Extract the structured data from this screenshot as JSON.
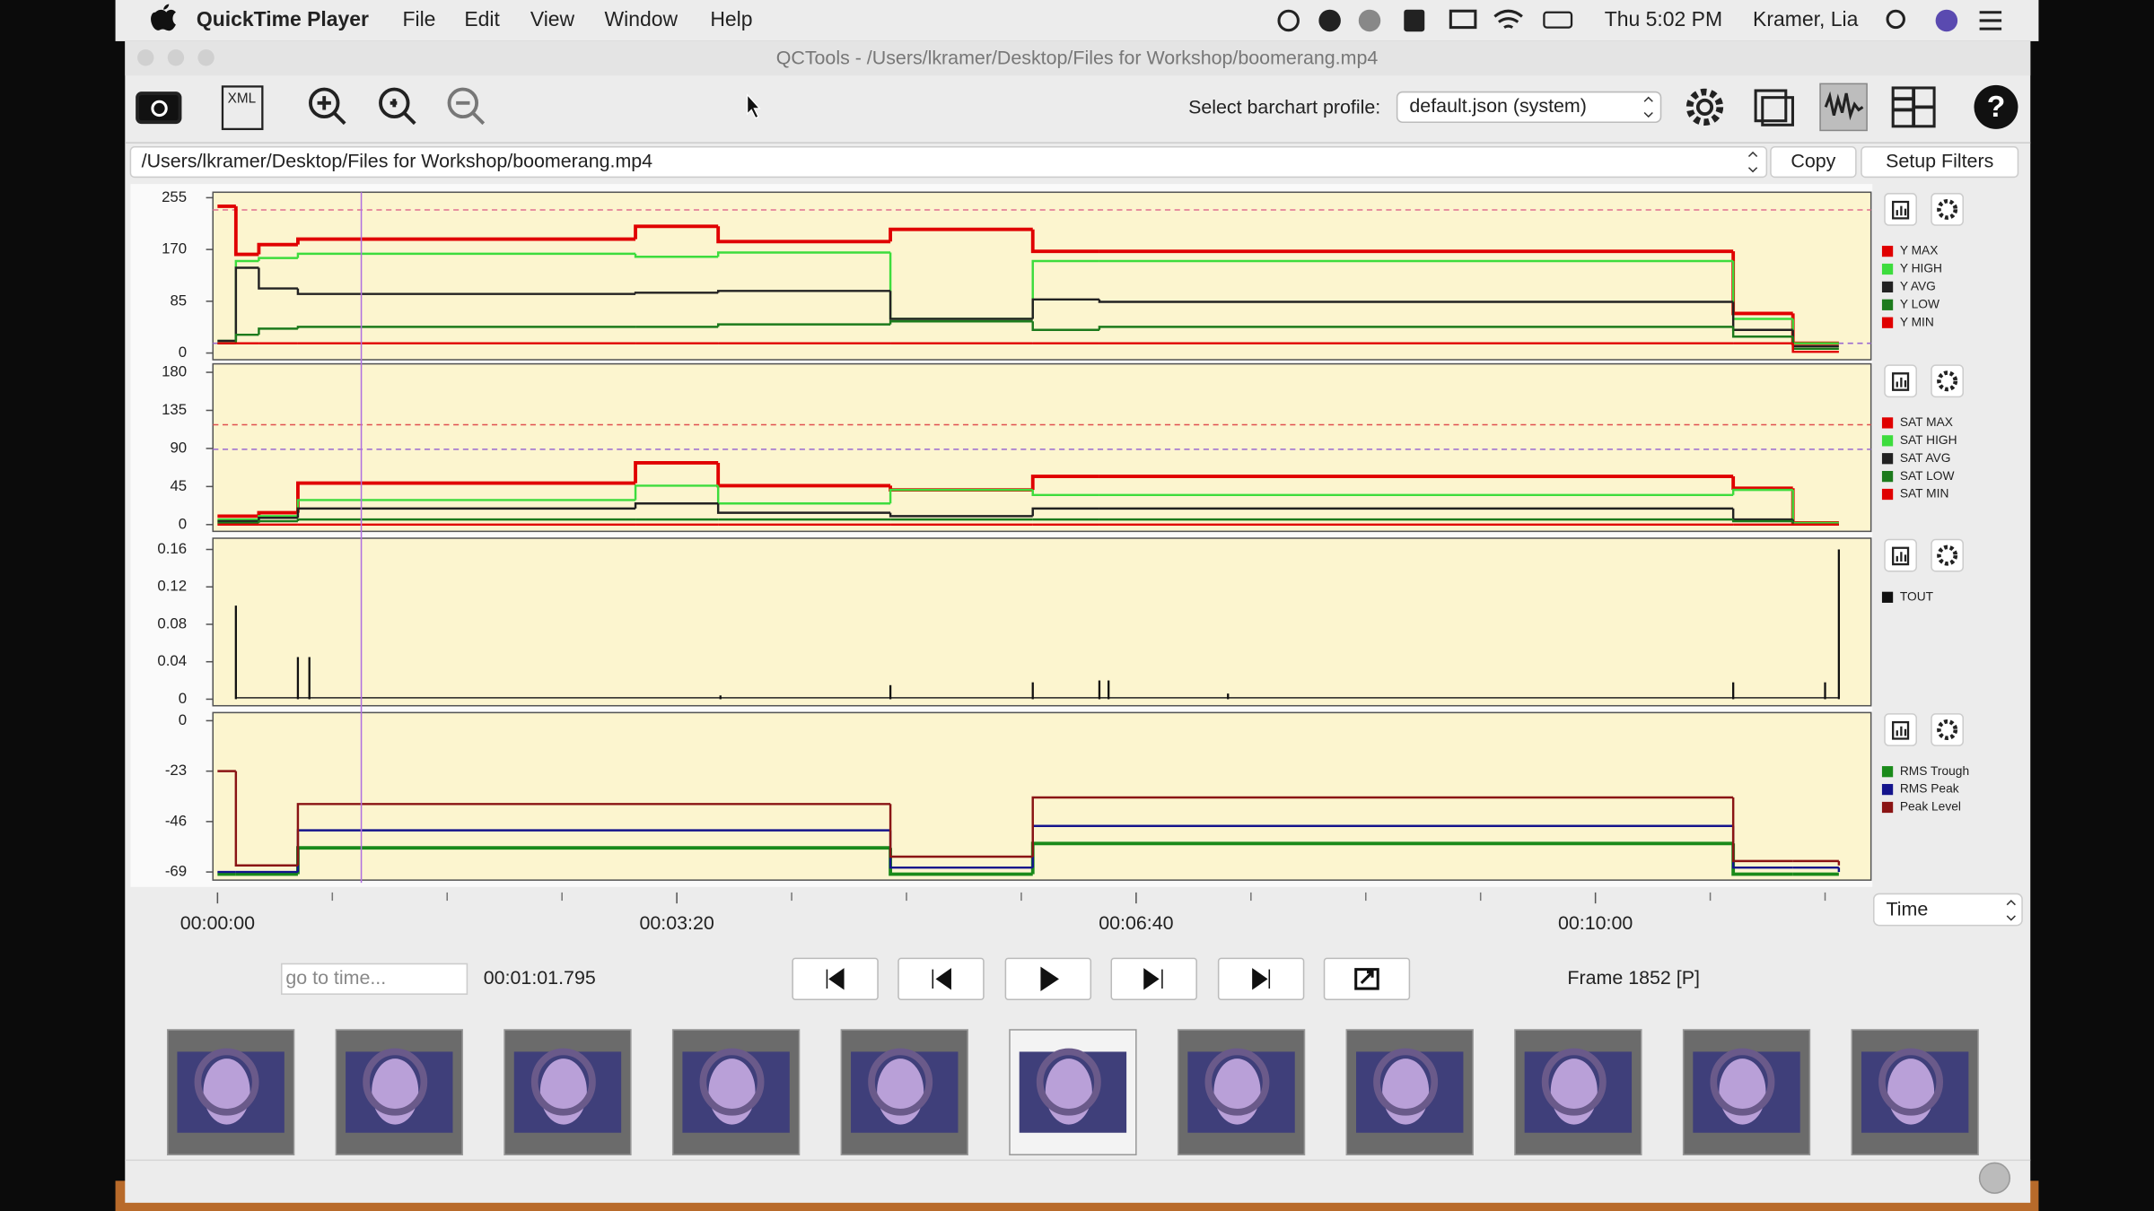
{
  "menubar": {
    "app": "QuickTime Player",
    "items": [
      "File",
      "Edit",
      "View",
      "Window",
      "Help"
    ],
    "clock": "Thu 5:02 PM",
    "user": "Kramer, Lia"
  },
  "window": {
    "title": "QCTools - /Users/lkramer/Desktop/Files for Workshop/boomerang.mp4"
  },
  "toolbar": {
    "xml_icon": "XML",
    "profile_label": "Select barchart profile:",
    "profile_value": "default.json (system)"
  },
  "file_bar": {
    "path": "/Users/lkramer/Desktop/Files for Workshop/boomerang.mp4",
    "buttons": [
      "Copy",
      "Setup Filters"
    ]
  },
  "graphs": [
    {
      "type": "step",
      "ylim": [
        -11,
        264
      ],
      "yticks": [
        0,
        85,
        170,
        255
      ],
      "x": [
        0,
        8,
        18,
        35,
        182,
        218,
        293,
        355,
        384,
        660,
        686,
        706
      ],
      "reference_lines": [
        {
          "value": 235,
          "color": "#e07090"
        },
        {
          "value": 16,
          "color": "#9a6ad0"
        }
      ],
      "series": [
        {
          "name": "Y MAX",
          "color": "#e00000",
          "values": [
            241,
            162,
            178,
            187,
            208,
            183,
            203,
            167,
            167,
            65,
            16,
            16
          ]
        },
        {
          "name": "Y HIGH",
          "color": "#3ddc3d",
          "values": [
            20,
            151,
            156,
            163,
            158,
            165,
            56,
            151,
            151,
            56,
            16,
            16
          ]
        },
        {
          "name": "Y AVG",
          "color": "#222222",
          "values": [
            20,
            140,
            106,
            97,
            99,
            102,
            56,
            88,
            84,
            38,
            11,
            11
          ]
        },
        {
          "name": "Y LOW",
          "color": "#1c7a1c",
          "values": [
            16,
            30,
            40,
            43,
            43,
            47,
            52,
            38,
            43,
            27,
            7,
            7
          ]
        },
        {
          "name": "Y MIN",
          "color": "#e00000",
          "values": [
            16,
            16,
            16,
            16,
            16,
            16,
            16,
            16,
            16,
            16,
            2,
            2
          ]
        }
      ]
    },
    {
      "type": "step",
      "ylim": [
        -8,
        190
      ],
      "yticks": [
        0,
        45,
        90,
        135,
        180
      ],
      "x": [
        0,
        18,
        35,
        182,
        218,
        293,
        355,
        384,
        660,
        686,
        706
      ],
      "reference_lines": [
        {
          "value": 118,
          "color": "#e05050"
        },
        {
          "value": 89,
          "color": "#9a6ad0"
        }
      ],
      "series": [
        {
          "name": "SAT MAX",
          "color": "#e00000",
          "values": [
            10,
            14,
            49,
            73,
            46,
            41,
            57,
            57,
            43,
            2,
            2
          ]
        },
        {
          "name": "SAT HIGH",
          "color": "#3ddc3d",
          "values": [
            6,
            10,
            29,
            46,
            25,
            41,
            35,
            35,
            41,
            2,
            2
          ]
        },
        {
          "name": "SAT AVG",
          "color": "#222222",
          "values": [
            4,
            8,
            19,
            25,
            14,
            10,
            19,
            19,
            6,
            0,
            0
          ]
        },
        {
          "name": "SAT LOW",
          "color": "#1c7a1c",
          "values": [
            2,
            4,
            6,
            6,
            6,
            6,
            6,
            6,
            4,
            0,
            0
          ]
        },
        {
          "name": "SAT MIN",
          "color": "#e00000",
          "values": [
            0,
            0,
            0,
            0,
            0,
            0,
            0,
            0,
            0,
            0,
            0
          ]
        }
      ]
    },
    {
      "type": "spikes",
      "ylim": [
        -0.007,
        0.172
      ],
      "yticks": [
        0,
        0.04,
        0.08,
        0.12,
        0.16
      ],
      "x": [
        8,
        35,
        40,
        219,
        293,
        355,
        384,
        388,
        440,
        660,
        700,
        706
      ],
      "reference_lines": [],
      "series": [
        {
          "name": "TOUT",
          "color": "#111111",
          "values": [
            0.1,
            0.045,
            0.045,
            0.004,
            0.015,
            0.018,
            0.02,
            0.02,
            0.006,
            0.018,
            0.018,
            0.16
          ]
        }
      ]
    },
    {
      "type": "step",
      "ylim": [
        -72.7,
        3.7
      ],
      "yticks": [
        0,
        -23,
        -46,
        -69
      ],
      "x": [
        0,
        8,
        35,
        293,
        355,
        660,
        686,
        706
      ],
      "reference_lines": [],
      "series": [
        {
          "name": "RMS Trough",
          "color": "#1a8a1a",
          "values": [
            -70,
            -70,
            -58,
            -70,
            -56,
            -70,
            -70,
            -70
          ]
        },
        {
          "name": "RMS Peak",
          "color": "#14148c",
          "values": [
            -69,
            -69,
            -50,
            -67,
            -48,
            -67,
            -67,
            -69
          ]
        },
        {
          "name": "Peak Level",
          "color": "#8a1414",
          "values": [
            -23,
            -66,
            -38,
            -62,
            -35,
            -64,
            -64,
            -66
          ]
        }
      ]
    }
  ],
  "timeline": {
    "xlim": [
      -2,
      720
    ],
    "xticks": [
      {
        "value": 0,
        "label": "00:00:00"
      },
      {
        "value": 200,
        "label": "00:03:20"
      },
      {
        "value": 400,
        "label": "00:06:40"
      },
      {
        "value": 600,
        "label": "00:10:00"
      }
    ],
    "minor_xticks": [
      50,
      100,
      150,
      250,
      300,
      350,
      450,
      500,
      550,
      650,
      700
    ],
    "mode": "Time"
  },
  "controls": {
    "goto_placeholder": "go to time...",
    "current_time": "00:01:01.795",
    "frame": "Frame 1852 [P]"
  }
}
